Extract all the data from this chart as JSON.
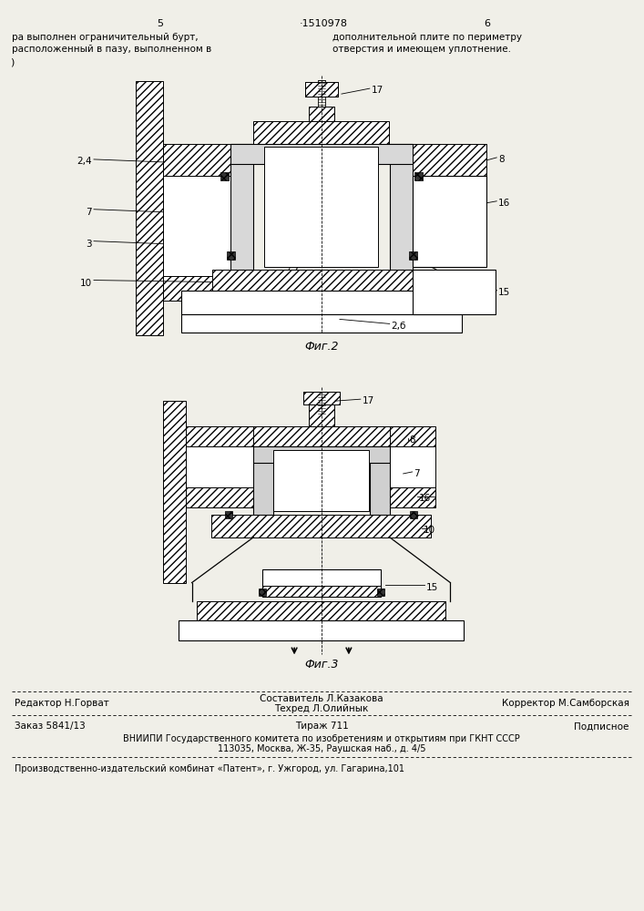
{
  "background_color": "#f0efe8",
  "page_width": 7.07,
  "page_height": 10.0,
  "header": {
    "left_num": "5",
    "center_num": "·1510978",
    "right_num": "6",
    "left_text_line1": "ра выполнен ограничительный бурт,",
    "left_text_line2": "расположенный в пазу, выполненном в",
    "right_text_line1": "дополнительной плите по периметру",
    "right_text_line2": "отверстия и имеющем уплотнение.",
    "left_bracket": ")"
  },
  "fig2_caption": "Фиг.2",
  "fig3_caption": "Фиг.3",
  "footer": {
    "line1_left": "Редактор Н.Горват",
    "line1_center_top": "Составитель Л.Казакова",
    "line1_center_bot": "Техред Л.Олийнык",
    "line1_right": "Корректор М.Самборская",
    "line2_left": "Заказ 5841/13",
    "line2_center": "Тираж 711",
    "line2_right": "Подписное",
    "line3": "ВНИИПИ Государственного комитета по изобретениям и открытиям при ГКНТ СССР",
    "line4": "113035, Москва, Ж-35, Раушская наб., д. 4/5",
    "line5": "Производственно-издательский комбинат «Патент», г. Ужгород, ул. Гагарина,101"
  }
}
